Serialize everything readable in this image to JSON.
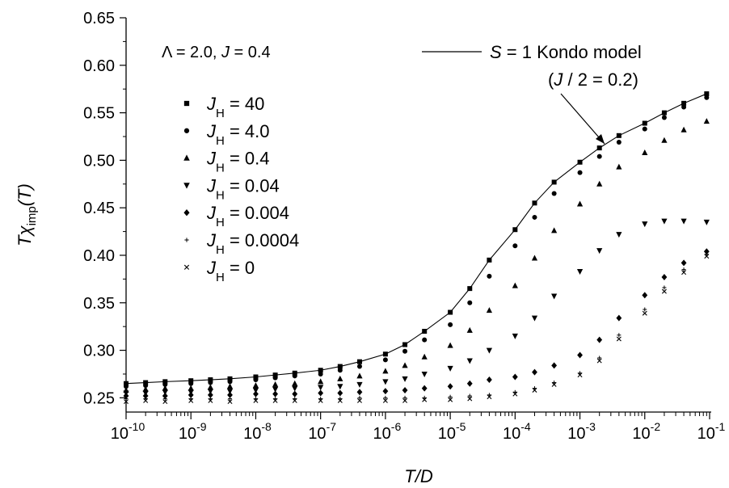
{
  "chart_data": {
    "type": "scatter",
    "x_scale": "log",
    "xlim": [
      1e-10,
      0.1
    ],
    "ylim": [
      0.235,
      0.65
    ],
    "y_ticks": [
      0.25,
      0.3,
      0.35,
      0.4,
      0.45,
      0.5,
      0.55,
      0.6,
      0.65
    ],
    "y_tick_labels": [
      "0.25",
      "0.30",
      "0.35",
      "0.40",
      "0.45",
      "0.50",
      "0.55",
      "0.60",
      "0.65"
    ],
    "x_ticks": [
      1e-10,
      1e-09,
      1e-08,
      1e-07,
      1e-06,
      1e-05,
      0.0001,
      0.001,
      0.01,
      0.1
    ],
    "x_tick_labels": [
      {
        "base": "10",
        "exp": "-10"
      },
      {
        "base": "10",
        "exp": "-9"
      },
      {
        "base": "10",
        "exp": "-8"
      },
      {
        "base": "10",
        "exp": "-7"
      },
      {
        "base": "10",
        "exp": "-6"
      },
      {
        "base": "10",
        "exp": "-5"
      },
      {
        "base": "10",
        "exp": "-4"
      },
      {
        "base": "10",
        "exp": "-3"
      },
      {
        "base": "10",
        "exp": "-2"
      },
      {
        "base": "10",
        "exp": "-1"
      }
    ],
    "xlabel": "T/D",
    "ylabel": {
      "main": "Tχ",
      "sub": "imp",
      "tail": "(T)"
    },
    "grid": false,
    "legend_position": "upper-left",
    "params_annotation": {
      "lambda": "Λ = 2.0, ",
      "j_italic": "J",
      "j_rest": " = 0.4"
    },
    "kondo_legend": {
      "s_italic": "S",
      "label_rest": " = 1 Kondo model",
      "sub_open": "(",
      "sub_j": "J",
      "sub_rest": " / 2 = 0.2)"
    },
    "x": [
      1e-10,
      2e-10,
      4e-10,
      1e-09,
      2e-09,
      4e-09,
      1e-08,
      2e-08,
      4e-08,
      1e-07,
      2e-07,
      4e-07,
      1e-06,
      2e-06,
      4e-06,
      1e-05,
      2e-05,
      4e-05,
      0.0001,
      0.0002,
      0.0004,
      0.001,
      0.002,
      0.004,
      0.01,
      0.02,
      0.04,
      0.09
    ],
    "line_series": {
      "name": "S = 1 Kondo model (J / 2 = 0.2)",
      "values": [
        0.265,
        0.266,
        0.267,
        0.268,
        0.269,
        0.27,
        0.272,
        0.274,
        0.276,
        0.279,
        0.283,
        0.288,
        0.296,
        0.306,
        0.32,
        0.34,
        0.365,
        0.395,
        0.427,
        0.455,
        0.477,
        0.498,
        0.513,
        0.526,
        0.539,
        0.55,
        0.56,
        0.57
      ]
    },
    "series": [
      {
        "name": "J_H = 40",
        "marker": "square",
        "values": [
          0.265,
          0.266,
          0.267,
          0.268,
          0.269,
          0.27,
          0.272,
          0.274,
          0.276,
          0.279,
          0.283,
          0.288,
          0.296,
          0.306,
          0.32,
          0.34,
          0.365,
          0.395,
          0.427,
          0.455,
          0.477,
          0.498,
          0.513,
          0.526,
          0.539,
          0.55,
          0.56,
          0.57
        ]
      },
      {
        "name": "J_H = 4.0",
        "marker": "circle",
        "values": [
          0.262,
          0.263,
          0.264,
          0.265,
          0.266,
          0.267,
          0.269,
          0.271,
          0.273,
          0.275,
          0.279,
          0.283,
          0.29,
          0.299,
          0.311,
          0.327,
          0.35,
          0.378,
          0.41,
          0.44,
          0.465,
          0.487,
          0.504,
          0.519,
          0.533,
          0.545,
          0.556,
          0.566
        ]
      },
      {
        "name": "J_H = 0.4",
        "marker": "triangle-up",
        "values": [
          0.258,
          0.259,
          0.26,
          0.26,
          0.261,
          0.262,
          0.263,
          0.264,
          0.265,
          0.267,
          0.27,
          0.273,
          0.278,
          0.284,
          0.293,
          0.305,
          0.321,
          0.342,
          0.368,
          0.397,
          0.426,
          0.454,
          0.475,
          0.493,
          0.508,
          0.521,
          0.532,
          0.541
        ]
      },
      {
        "name": "J_H = 0.04",
        "marker": "triangle-down",
        "values": [
          0.255,
          0.255,
          0.256,
          0.256,
          0.257,
          0.257,
          0.258,
          0.259,
          0.26,
          0.261,
          0.262,
          0.264,
          0.267,
          0.27,
          0.275,
          0.281,
          0.289,
          0.3,
          0.315,
          0.334,
          0.357,
          0.383,
          0.405,
          0.422,
          0.433,
          0.436,
          0.436,
          0.435
        ]
      },
      {
        "name": "J_H = 0.004",
        "marker": "diamond",
        "values": [
          0.252,
          0.252,
          0.252,
          0.253,
          0.253,
          0.253,
          0.254,
          0.254,
          0.254,
          0.255,
          0.255,
          0.256,
          0.257,
          0.258,
          0.26,
          0.262,
          0.265,
          0.269,
          0.272,
          0.277,
          0.284,
          0.295,
          0.311,
          0.334,
          0.358,
          0.377,
          0.392,
          0.404
        ]
      },
      {
        "name": "J_H = 0.0004",
        "marker": "plus",
        "values": [
          0.249,
          0.249,
          0.249,
          0.249,
          0.249,
          0.249,
          0.249,
          0.249,
          0.249,
          0.249,
          0.249,
          0.25,
          0.25,
          0.25,
          0.25,
          0.251,
          0.252,
          0.253,
          0.256,
          0.26,
          0.266,
          0.276,
          0.292,
          0.316,
          0.343,
          0.366,
          0.385,
          0.401
        ]
      },
      {
        "name": "J_H = 0",
        "marker": "cross",
        "values": [
          0.246,
          0.247,
          0.246,
          0.247,
          0.247,
          0.246,
          0.247,
          0.247,
          0.247,
          0.247,
          0.247,
          0.247,
          0.247,
          0.247,
          0.248,
          0.248,
          0.249,
          0.251,
          0.254,
          0.258,
          0.264,
          0.274,
          0.289,
          0.312,
          0.339,
          0.362,
          0.382,
          0.399
        ]
      }
    ],
    "legend": [
      {
        "sym": "J",
        "sub": "H",
        "rest": " = 40"
      },
      {
        "sym": "J",
        "sub": "H",
        "rest": " = 4.0"
      },
      {
        "sym": "J",
        "sub": "H",
        "rest": " = 0.4"
      },
      {
        "sym": "J",
        "sub": "H",
        "rest": " = 0.04"
      },
      {
        "sym": "J",
        "sub": "H",
        "rest": " = 0.004"
      },
      {
        "sym": "J",
        "sub": "H",
        "rest": " = 0.0004"
      },
      {
        "sym": "J",
        "sub": "H",
        "rest": " = 0"
      }
    ]
  }
}
